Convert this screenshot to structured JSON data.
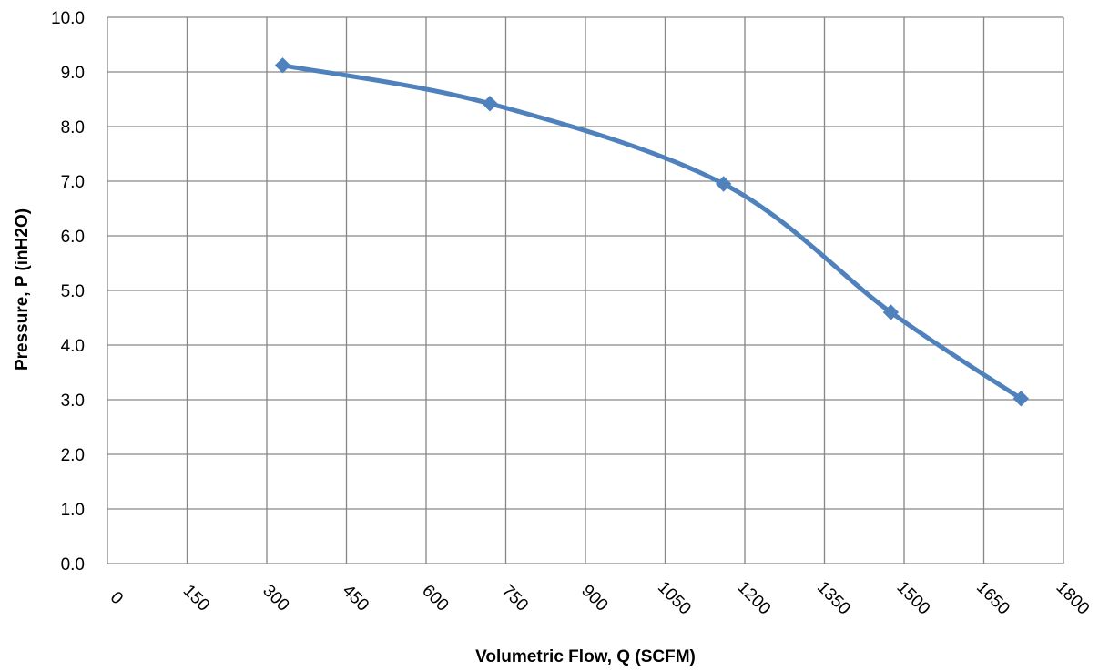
{
  "chart_data": {
    "type": "line",
    "title": "",
    "xlabel": "Volumetric Flow, Q (SCFM)",
    "ylabel": "Pressure, P (inH2O)",
    "xlim": [
      0,
      1800
    ],
    "ylim": [
      0,
      10
    ],
    "x_ticks": [
      "0",
      "150",
      "300",
      "450",
      "600",
      "750",
      "900",
      "1050",
      "1200",
      "1350",
      "1500",
      "1650",
      "1800"
    ],
    "y_ticks": [
      "0.0",
      "1.0",
      "2.0",
      "3.0",
      "4.0",
      "5.0",
      "6.0",
      "7.0",
      "8.0",
      "9.0",
      "10.0"
    ],
    "grid": true,
    "smooth": true,
    "legend": "none",
    "marker": "diamond",
    "series": [
      {
        "color": "#4F81BD",
        "x": [
          330,
          720,
          1160,
          1475,
          1720
        ],
        "y": [
          9.12,
          8.42,
          6.95,
          4.6,
          3.02
        ]
      }
    ]
  }
}
